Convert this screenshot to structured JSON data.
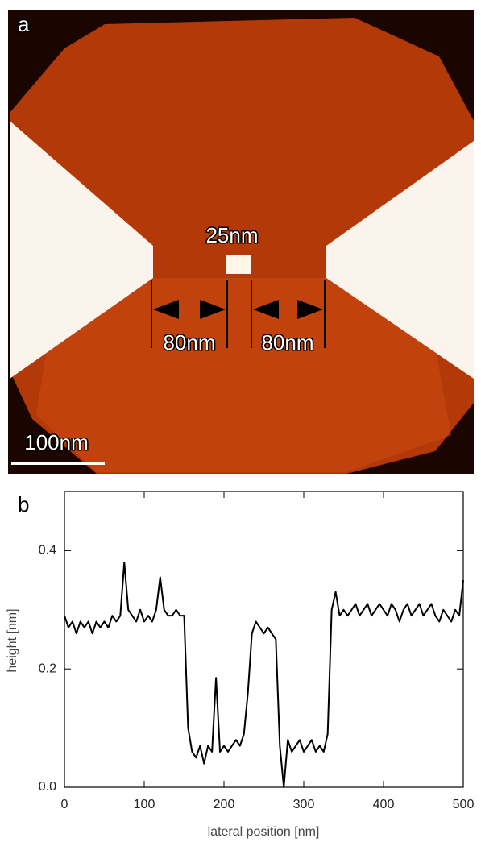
{
  "panel_a": {
    "label": "a",
    "center_label": "25nm",
    "left_gap_label": "80nm",
    "right_gap_label": "80nm",
    "scale_bar_label": "100nm"
  },
  "chart_data": {
    "type": "line",
    "panel_label": "b",
    "x_label": "lateral position [nm]",
    "y_label": "height [nm]",
    "xlim": [
      0,
      500
    ],
    "ylim": [
      0,
      0.5
    ],
    "xticks": [
      0,
      100,
      200,
      300,
      400,
      500
    ],
    "yticks": [
      {
        "value": 0,
        "label": "0.0"
      },
      0.2,
      0.4
    ],
    "x": [
      0,
      5,
      10,
      15,
      20,
      25,
      30,
      35,
      40,
      45,
      50,
      55,
      60,
      65,
      70,
      75,
      80,
      85,
      90,
      95,
      100,
      105,
      110,
      115,
      120,
      125,
      130,
      135,
      140,
      145,
      150,
      155,
      160,
      165,
      170,
      175,
      180,
      185,
      190,
      195,
      200,
      205,
      210,
      215,
      220,
      225,
      230,
      235,
      240,
      245,
      250,
      255,
      260,
      265,
      270,
      275,
      280,
      285,
      290,
      295,
      300,
      305,
      310,
      315,
      320,
      325,
      330,
      335,
      340,
      345,
      350,
      355,
      360,
      365,
      370,
      375,
      380,
      385,
      390,
      395,
      400,
      405,
      410,
      415,
      420,
      425,
      430,
      435,
      440,
      445,
      450,
      455,
      460,
      465,
      470,
      475,
      480,
      485,
      490,
      495,
      500
    ],
    "series": [
      {
        "color": "#000000",
        "values": [
          0.29,
          0.27,
          0.28,
          0.26,
          0.28,
          0.27,
          0.28,
          0.26,
          0.28,
          0.27,
          0.28,
          0.27,
          0.29,
          0.28,
          0.29,
          0.38,
          0.3,
          0.29,
          0.28,
          0.3,
          0.28,
          0.29,
          0.28,
          0.3,
          0.355,
          0.3,
          0.29,
          0.29,
          0.3,
          0.29,
          0.29,
          0.1,
          0.06,
          0.05,
          0.07,
          0.04,
          0.07,
          0.06,
          0.185,
          0.06,
          0.07,
          0.06,
          0.07,
          0.08,
          0.07,
          0.09,
          0.16,
          0.26,
          0.28,
          0.27,
          0.26,
          0.27,
          0.26,
          0.25,
          0.07,
          0.0,
          0.08,
          0.06,
          0.07,
          0.08,
          0.06,
          0.07,
          0.08,
          0.06,
          0.07,
          0.06,
          0.09,
          0.3,
          0.33,
          0.29,
          0.3,
          0.29,
          0.3,
          0.31,
          0.29,
          0.3,
          0.31,
          0.29,
          0.3,
          0.31,
          0.3,
          0.29,
          0.31,
          0.3,
          0.28,
          0.3,
          0.31,
          0.29,
          0.3,
          0.31,
          0.29,
          0.3,
          0.31,
          0.29,
          0.28,
          0.3,
          0.29,
          0.28,
          0.3,
          0.29,
          0.35
        ]
      }
    ]
  }
}
